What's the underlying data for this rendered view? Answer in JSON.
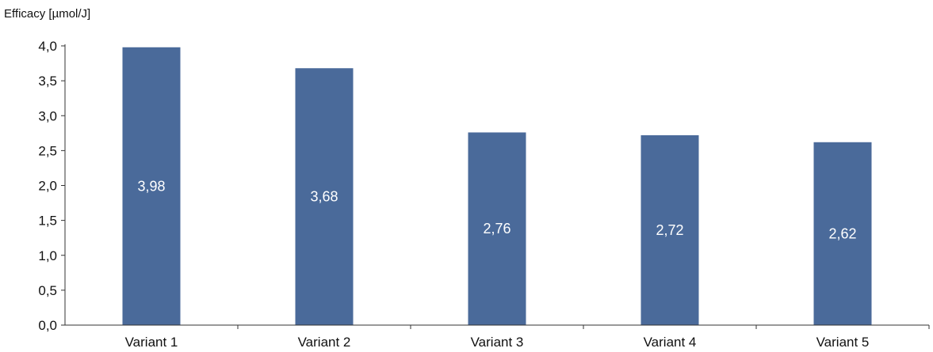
{
  "chart_data": {
    "type": "bar",
    "title": "",
    "ylabel": "Efficacy [µmol/J]",
    "xlabel": "",
    "categories": [
      "Variant 1",
      "Variant 2",
      "Variant 3",
      "Variant 4",
      "Variant 5"
    ],
    "values": [
      3.98,
      3.68,
      2.76,
      2.72,
      2.62
    ],
    "value_labels": [
      "3,98",
      "3,68",
      "2,76",
      "2,72",
      "2,62"
    ],
    "ylim": [
      0,
      4.0
    ],
    "yticks": [
      0,
      0.5,
      1.0,
      1.5,
      2.0,
      2.5,
      3.0,
      3.5,
      4.0
    ],
    "ytick_labels": [
      "0,0",
      "0,5",
      "1,0",
      "1,5",
      "2,0",
      "2,5",
      "3,0",
      "3,5",
      "4,0"
    ],
    "grid": false,
    "legend": "none",
    "colors": {
      "bar": "#4a6a9a",
      "bar_label": "#ffffff",
      "axis": "#333333"
    }
  }
}
